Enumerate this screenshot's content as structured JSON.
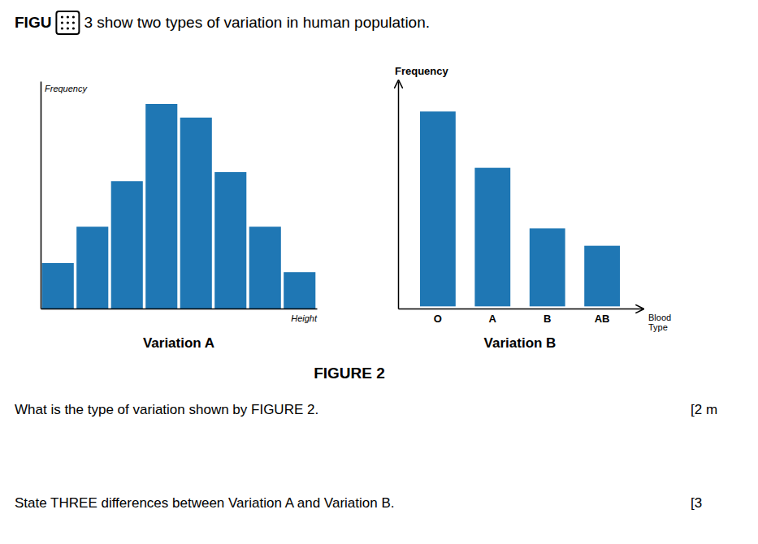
{
  "title": "FIGURE 2",
  "annotations": [
    "FIGU",
    "3 show two types of variation in human population.",
    "What is the type of variation shown by FIGURE 2.",
    "[2 m",
    "State THREE differences between Variation A and Variation B.",
    "[3"
  ],
  "chart_data": [
    {
      "type": "bar",
      "title": "Variation A",
      "x_label": "Height",
      "y_label": "Frequency",
      "categories": [
        null,
        null,
        null,
        null,
        null,
        null,
        null,
        null
      ],
      "values": [
        1.0,
        1.8,
        2.8,
        4.5,
        4.2,
        3.0,
        1.8,
        0.8
      ],
      "ylim": [
        0,
        5.0
      ],
      "tick_labels": false,
      "grid": false
    },
    {
      "type": "bar",
      "title": "Variation B",
      "x_label": "Blood\nType",
      "y_label": "Frequency",
      "categories": [
        "O",
        "A",
        "B",
        "AB"
      ],
      "values": [
        4.5,
        3.2,
        1.8,
        1.4
      ],
      "ylim": [
        -0.05,
        5.2
      ],
      "tick_labels": "x",
      "grid": false
    }
  ]
}
